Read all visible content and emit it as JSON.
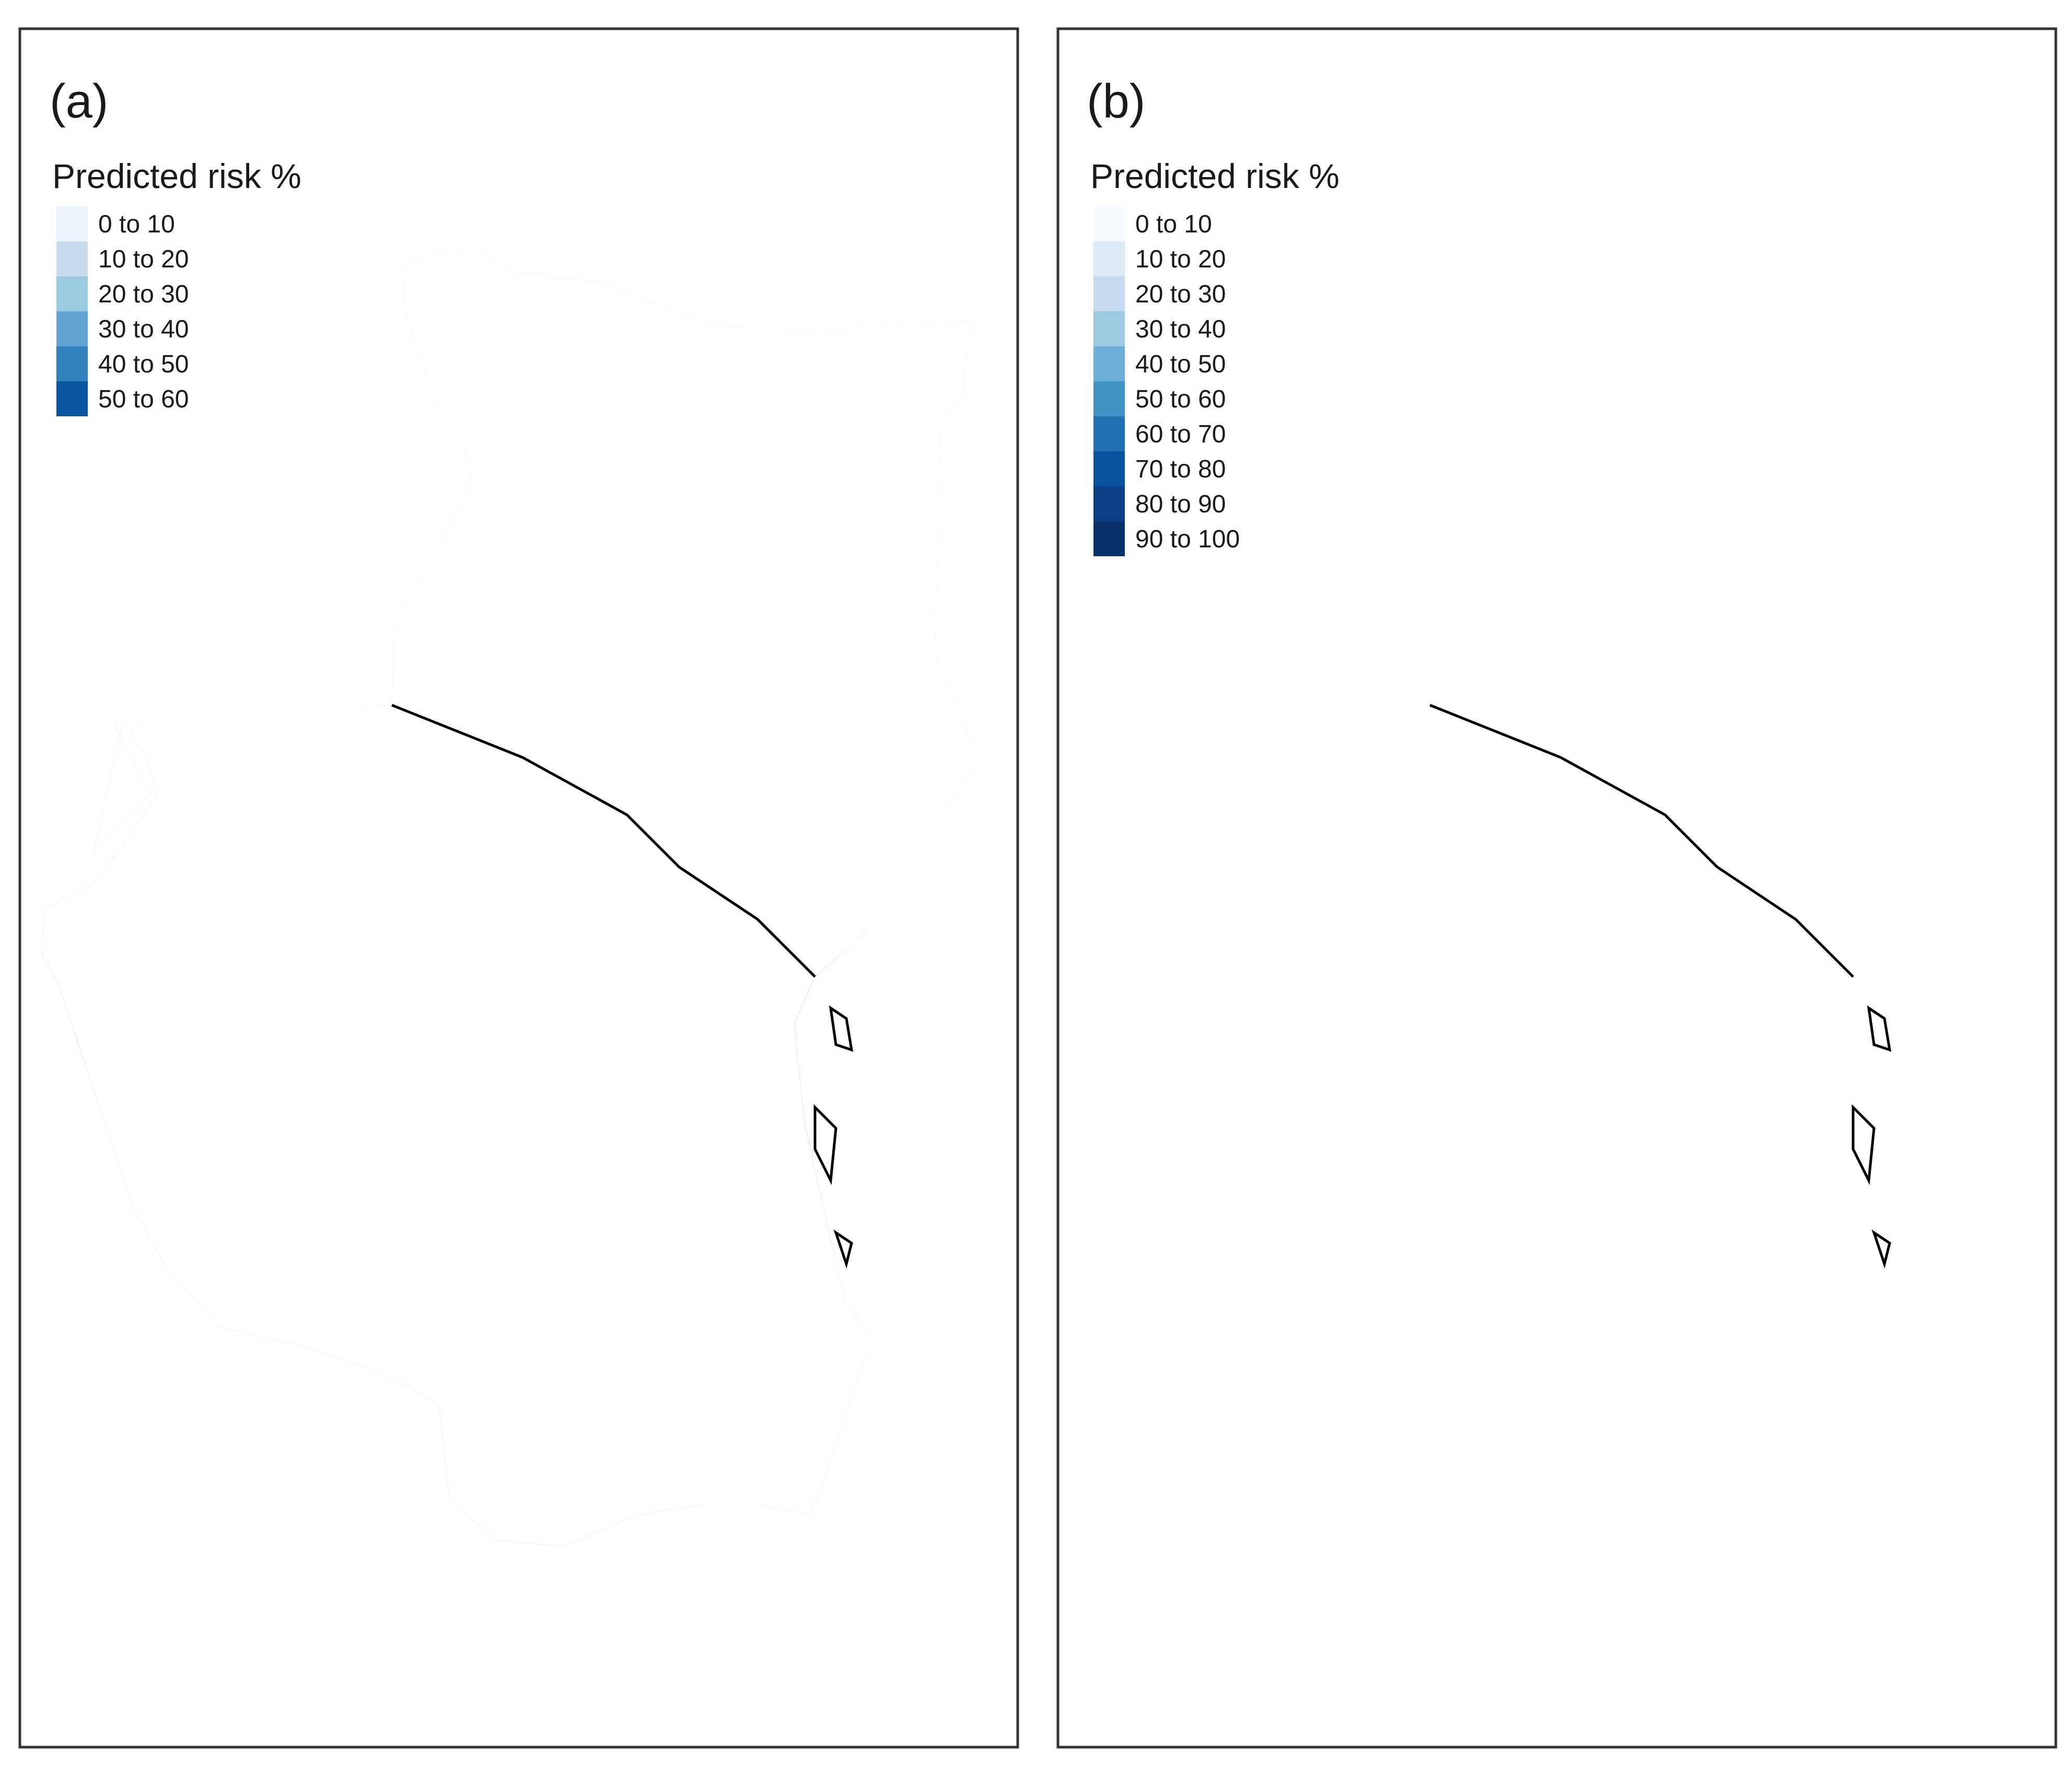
{
  "figure": {
    "panels": [
      {
        "id": "a",
        "label": "(a)",
        "legend_title": "Predicted risk %",
        "legend": [
          {
            "label": "0 to 10",
            "color": "#eef4fb"
          },
          {
            "label": "10 to 20",
            "color": "#c9dcef"
          },
          {
            "label": "20 to 30",
            "color": "#9ecae1"
          },
          {
            "label": "30 to 40",
            "color": "#62a5d2"
          },
          {
            "label": "40 to 50",
            "color": "#3182bd"
          },
          {
            "label": "50 to 60",
            "color": "#0d54a0"
          }
        ]
      },
      {
        "id": "b",
        "label": "(b)",
        "legend_title": "Predicted risk %",
        "legend": [
          {
            "label": "0 to 10",
            "color": "#f7fbff"
          },
          {
            "label": "10 to 20",
            "color": "#deebf7"
          },
          {
            "label": "20 to 30",
            "color": "#c6dbef"
          },
          {
            "label": "30 to 40",
            "color": "#9ecae1"
          },
          {
            "label": "40 to 50",
            "color": "#6baed6"
          },
          {
            "label": "50 to 60",
            "color": "#4292c6"
          },
          {
            "label": "60 to 70",
            "color": "#2171b5"
          },
          {
            "label": "70 to 80",
            "color": "#08519c"
          },
          {
            "label": "80 to 90",
            "color": "#0a3f86"
          },
          {
            "label": "90 to 100",
            "color": "#08306b"
          }
        ]
      }
    ]
  },
  "colors": {
    "country_border": "#000000",
    "admin_border": "#bdbdbd",
    "frame": "#333333"
  }
}
